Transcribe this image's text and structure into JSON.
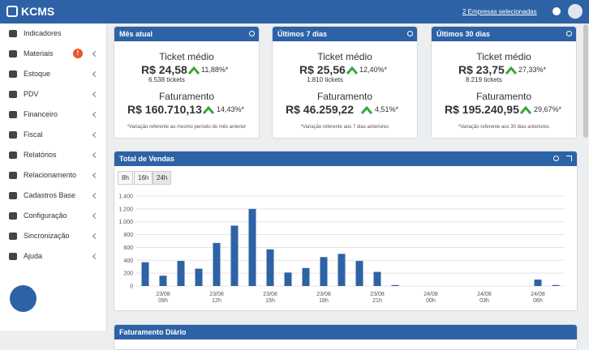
{
  "header": {
    "logo": "KCMS",
    "company_link": "2 Empresas selecionadas"
  },
  "sidebar": {
    "items": [
      "Indicadores",
      "Materiais",
      "Estoque",
      "PDV",
      "Financeiro",
      "Fiscal",
      "Relatórios",
      "Relacionamento",
      "Cadastros Base",
      "Configuração",
      "Sincronização",
      "Ajuda"
    ],
    "badge": "!"
  },
  "cards": [
    {
      "title": "Mês atual",
      "ticket_label": "Ticket médio",
      "ticket_value": "R$ 24,58",
      "ticket_change": "11,88%*",
      "ticket_count": "6.538 tickets",
      "revenue_label": "Faturamento",
      "revenue_value": "R$ 160.710,13",
      "revenue_change": "14,43%*",
      "note": "*Variação referente ao mesmo período do mês anterior"
    },
    {
      "title": "Últimos 7 dias",
      "ticket_label": "Ticket médio",
      "ticket_value": "R$ 25,56",
      "ticket_change": "12,40%*",
      "ticket_count": "1.810 tickets",
      "revenue_label": "Faturamento",
      "revenue_value": "R$ 46.259,22",
      "revenue_change": "4,51%*",
      "note": "*Variação referente aos 7 dias anteriores"
    },
    {
      "title": "Últimos 30 dias",
      "ticket_label": "Ticket médio",
      "ticket_value": "R$ 23,75",
      "ticket_change": "27,33%*",
      "ticket_count": "8.219 tickets",
      "revenue_label": "Faturamento",
      "revenue_value": "R$ 195.240,95",
      "revenue_change": "29,67%*",
      "note": "*Variação referente aos 30 dias anteriores"
    }
  ],
  "sales_panel": {
    "title": "Total de Vendas",
    "range_buttons": [
      "8h",
      "16h",
      "24h"
    ]
  },
  "next_panel": {
    "title": "Faturamento Diário"
  },
  "chart_data": {
    "type": "bar",
    "color": "#2e62a6",
    "grid": true,
    "categories": [
      null,
      "09h",
      null,
      null,
      "12h",
      null,
      null,
      "15h",
      null,
      null,
      "18h",
      null,
      null,
      "21h",
      null,
      null,
      "00h",
      null,
      null,
      "03h",
      null,
      null,
      "06h",
      null
    ],
    "category_dates": [
      null,
      "23/08",
      null,
      null,
      "23/08",
      null,
      null,
      "23/08",
      null,
      null,
      "23/08",
      null,
      null,
      "23/08",
      null,
      null,
      "24/08",
      null,
      null,
      "24/08",
      null,
      null,
      "24/08",
      null
    ],
    "values": [
      370,
      160,
      390,
      270,
      670,
      940,
      1200,
      570,
      210,
      280,
      450,
      500,
      390,
      220,
      15,
      0,
      0,
      0,
      0,
      0,
      0,
      0,
      100,
      15
    ],
    "ylim": [
      0,
      1400
    ],
    "yticks": [
      0,
      200,
      400,
      600,
      800,
      {
        "value": 1000,
        "label": "1.000"
      },
      {
        "value": 1200,
        "label": "1.200"
      },
      {
        "value": 1400,
        "label": "1.400"
      }
    ]
  }
}
